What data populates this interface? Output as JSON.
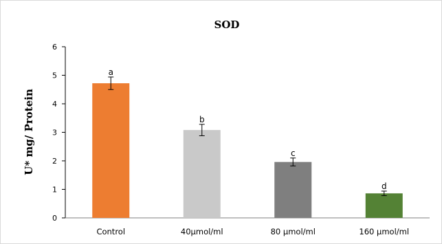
{
  "chart_data": {
    "type": "bar",
    "title": "SOD",
    "ylabel": "U* mg/ Protein",
    "xlabel": "",
    "ylim": [
      0,
      6
    ],
    "yticks": [
      0,
      1,
      2,
      3,
      4,
      5,
      6
    ],
    "grid": false,
    "legend": "none",
    "categories": [
      "Control",
      "40µmol/ml",
      "80 µmol/ml",
      "160 µmol/ml"
    ],
    "values": [
      4.72,
      3.08,
      1.96,
      0.86
    ],
    "errors": [
      0.22,
      0.2,
      0.14,
      0.08
    ],
    "labels": [
      "a",
      "b",
      "c",
      "d"
    ],
    "colors": [
      "#ed7d31",
      "#c9c9c9",
      "#7f7f7f",
      "#548235"
    ]
  }
}
